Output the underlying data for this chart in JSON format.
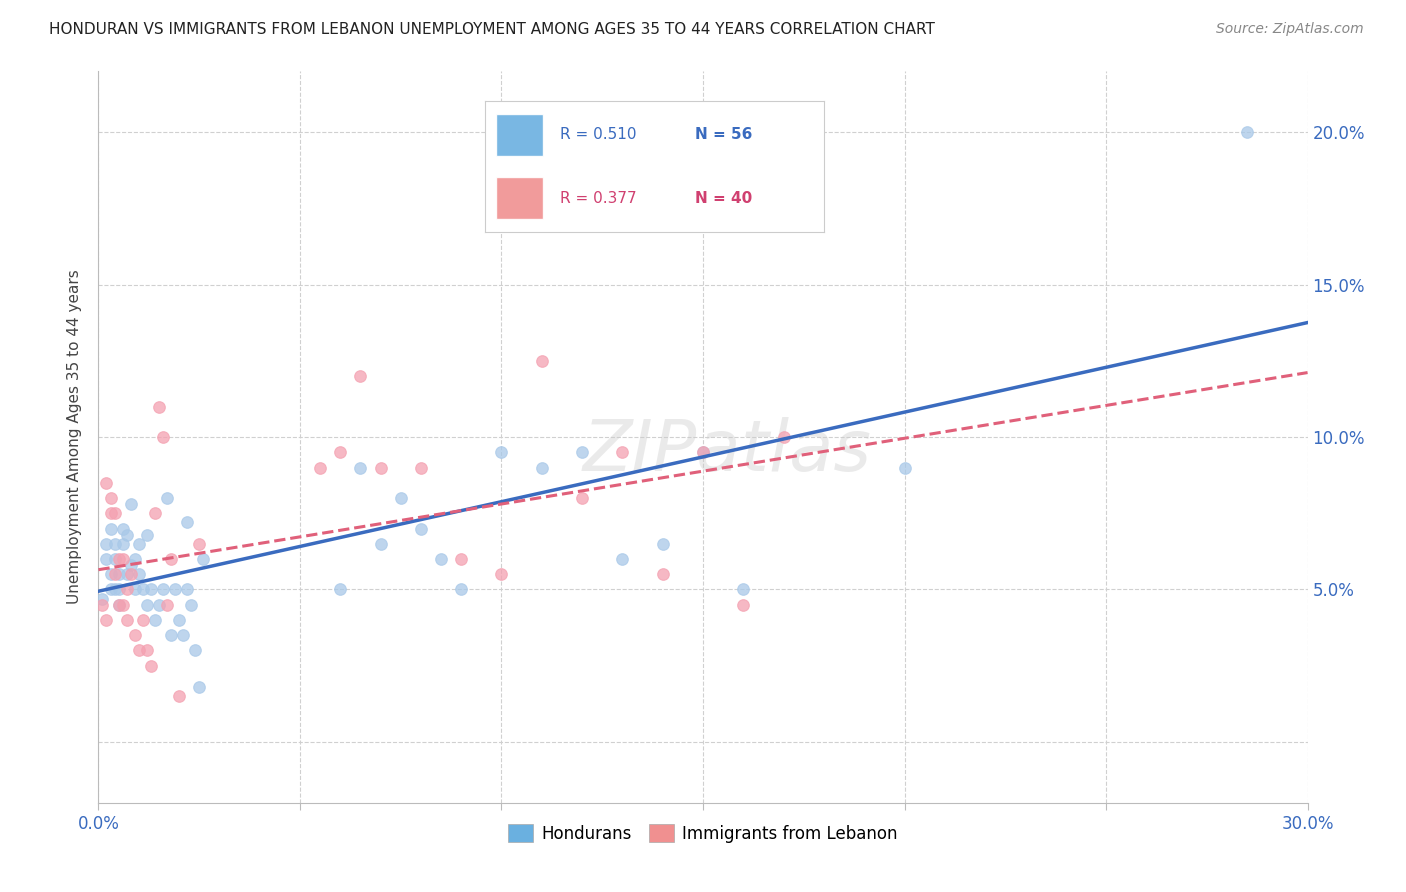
{
  "title": "HONDURAN VS IMMIGRANTS FROM LEBANON UNEMPLOYMENT AMONG AGES 35 TO 44 YEARS CORRELATION CHART",
  "source": "Source: ZipAtlas.com",
  "ylabel": "Unemployment Among Ages 35 to 44 years",
  "xlim": [
    0.0,
    0.3
  ],
  "ylim": [
    -0.02,
    0.22
  ],
  "xticks": [
    0.0,
    0.05,
    0.1,
    0.15,
    0.2,
    0.25,
    0.3
  ],
  "yticks": [
    0.0,
    0.05,
    0.1,
    0.15,
    0.2
  ],
  "hondurans_color": "#a8c8e8",
  "lebanon_color": "#f4a0b0",
  "trendline_hondurans_color": "#3a6bbf",
  "trendline_lebanon_color": "#e0607a",
  "scatter_alpha": 0.75,
  "marker_size": 70,
  "hondurans_x": [
    0.001,
    0.002,
    0.002,
    0.003,
    0.003,
    0.003,
    0.004,
    0.004,
    0.004,
    0.005,
    0.005,
    0.005,
    0.006,
    0.006,
    0.007,
    0.007,
    0.008,
    0.008,
    0.009,
    0.009,
    0.01,
    0.01,
    0.011,
    0.012,
    0.012,
    0.013,
    0.014,
    0.015,
    0.016,
    0.017,
    0.018,
    0.019,
    0.02,
    0.021,
    0.022,
    0.022,
    0.023,
    0.024,
    0.025,
    0.026,
    0.06,
    0.065,
    0.07,
    0.075,
    0.08,
    0.085,
    0.09,
    0.1,
    0.11,
    0.12,
    0.13,
    0.14,
    0.15,
    0.16,
    0.2,
    0.285
  ],
  "hondurans_y": [
    0.047,
    0.06,
    0.065,
    0.05,
    0.055,
    0.07,
    0.05,
    0.06,
    0.065,
    0.045,
    0.05,
    0.055,
    0.065,
    0.07,
    0.055,
    0.068,
    0.058,
    0.078,
    0.05,
    0.06,
    0.055,
    0.065,
    0.05,
    0.045,
    0.068,
    0.05,
    0.04,
    0.045,
    0.05,
    0.08,
    0.035,
    0.05,
    0.04,
    0.035,
    0.05,
    0.072,
    0.045,
    0.03,
    0.018,
    0.06,
    0.05,
    0.09,
    0.065,
    0.08,
    0.07,
    0.06,
    0.05,
    0.095,
    0.09,
    0.095,
    0.06,
    0.065,
    0.095,
    0.05,
    0.09,
    0.2
  ],
  "lebanon_x": [
    0.001,
    0.002,
    0.002,
    0.003,
    0.003,
    0.004,
    0.004,
    0.005,
    0.005,
    0.006,
    0.006,
    0.007,
    0.007,
    0.008,
    0.009,
    0.01,
    0.011,
    0.012,
    0.013,
    0.014,
    0.015,
    0.016,
    0.017,
    0.018,
    0.02,
    0.025,
    0.055,
    0.06,
    0.065,
    0.07,
    0.08,
    0.09,
    0.1,
    0.11,
    0.12,
    0.13,
    0.14,
    0.15,
    0.16,
    0.17
  ],
  "lebanon_y": [
    0.045,
    0.085,
    0.04,
    0.075,
    0.08,
    0.055,
    0.075,
    0.045,
    0.06,
    0.06,
    0.045,
    0.05,
    0.04,
    0.055,
    0.035,
    0.03,
    0.04,
    0.03,
    0.025,
    0.075,
    0.11,
    0.1,
    0.045,
    0.06,
    0.015,
    0.065,
    0.09,
    0.095,
    0.12,
    0.09,
    0.09,
    0.06,
    0.055,
    0.125,
    0.08,
    0.095,
    0.055,
    0.095,
    0.045,
    0.1
  ],
  "R_hondurans": "0.510",
  "N_hondurans": "56",
  "R_lebanon": "0.377",
  "N_lebanon": "40",
  "legend_color_hondurans": "#6ab0e0",
  "legend_color_lebanon": "#f09090",
  "legend_text_color_blue": "#3a6bbf",
  "legend_text_color_pink": "#d04070",
  "watermark": "ZIPatlas",
  "watermark_color": "#cccccc",
  "title_fontsize": 11,
  "source_fontsize": 10,
  "tick_fontsize": 12,
  "ylabel_fontsize": 11
}
